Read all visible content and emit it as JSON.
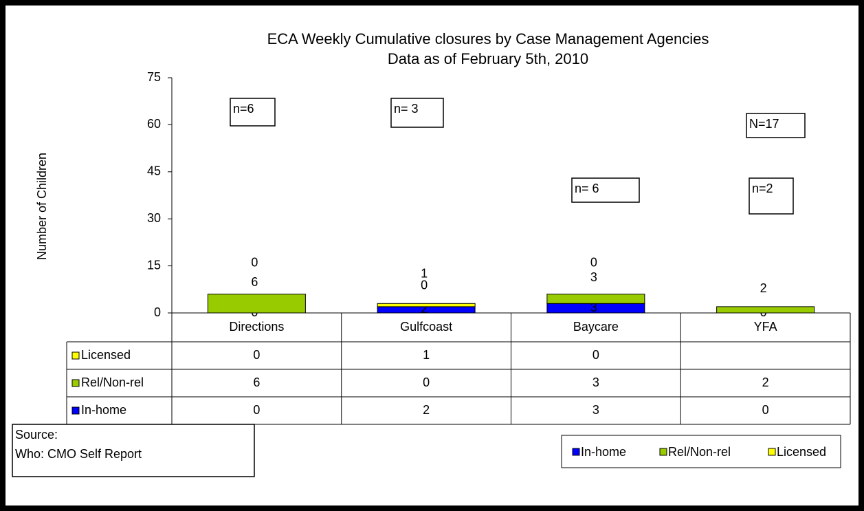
{
  "chart_data": {
    "type": "bar",
    "stacked": true,
    "title": "ECA Weekly Cumulative closures by Case Management Agencies",
    "subtitle": "Data as of February 5th, 2010",
    "y_label": "Number of Children",
    "categories": [
      "Directions",
      "Gulfcoast",
      "Baycare",
      "YFA"
    ],
    "series": [
      {
        "name": "In-home",
        "color": "#0000ff",
        "values": [
          0,
          2,
          3,
          0
        ]
      },
      {
        "name": "Rel/Non-rel",
        "color": "#99cc00",
        "values": [
          6,
          0,
          3,
          2
        ]
      },
      {
        "name": "Licensed",
        "color": "#ffff00",
        "values": [
          0,
          1,
          0,
          null
        ]
      }
    ],
    "ylim": [
      0,
      75
    ],
    "yticks": [
      0,
      15,
      30,
      45,
      60,
      75
    ],
    "annotations": [
      "n=6",
      "n= 3",
      "n= 6",
      "N=17",
      "n=2"
    ],
    "source": [
      "Source:",
      "Who: CMO Self Report"
    ],
    "legend": "bottom-right",
    "data_table": true
  }
}
